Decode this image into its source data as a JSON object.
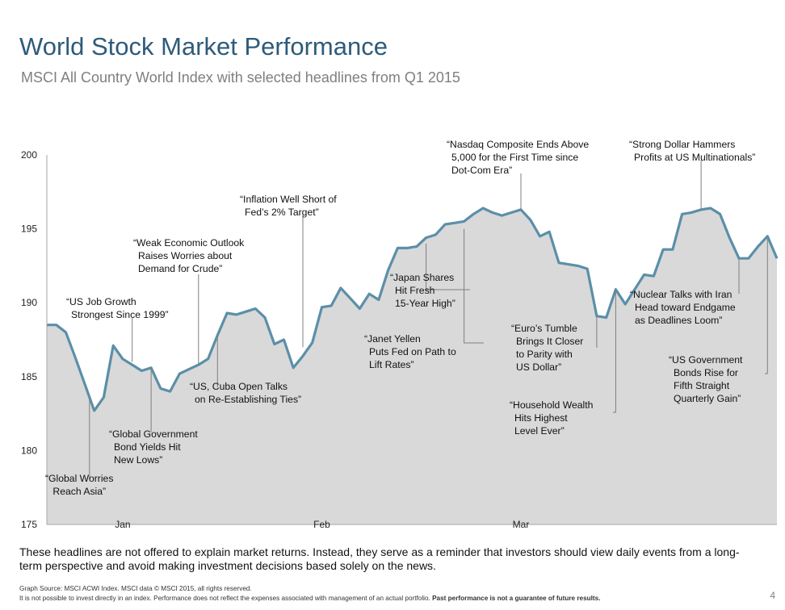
{
  "header": {
    "title": "World Stock Market Performance",
    "subtitle": "MSCI All Country World Index with selected headlines from Q1 2015"
  },
  "chart_data": {
    "type": "area",
    "title": "World Stock Market Performance",
    "subtitle": "MSCI All Country World Index with selected headlines from Q1 2015",
    "ylim": [
      175,
      200
    ],
    "yticks": [
      175,
      180,
      185,
      190,
      195,
      200
    ],
    "xticks": [
      {
        "label": "Jan",
        "x": 8
      },
      {
        "label": "Feb",
        "x": 29
      },
      {
        "label": "Mar",
        "x": 50
      }
    ],
    "grid": false,
    "legend": "none",
    "series": [
      {
        "values": [
          [
            0,
            188.5
          ],
          [
            1,
            188.5
          ],
          [
            2,
            188.0
          ],
          [
            3,
            186.3
          ],
          [
            4,
            184.5
          ],
          [
            5,
            182.7
          ],
          [
            6,
            183.6
          ],
          [
            7,
            187.1
          ],
          [
            8,
            186.2
          ],
          [
            9,
            185.8
          ],
          [
            10,
            185.4
          ],
          [
            11,
            185.6
          ],
          [
            12,
            184.2
          ],
          [
            13,
            184.0
          ],
          [
            14,
            185.2
          ],
          [
            15,
            185.5
          ],
          [
            16,
            185.8
          ],
          [
            17,
            186.2
          ],
          [
            18,
            187.8
          ],
          [
            19,
            189.3
          ],
          [
            20,
            189.2
          ],
          [
            21,
            189.4
          ],
          [
            22,
            189.6
          ],
          [
            23,
            189.0
          ],
          [
            24,
            187.2
          ],
          [
            25,
            187.5
          ],
          [
            26,
            185.6
          ],
          [
            27,
            186.4
          ],
          [
            28,
            187.3
          ],
          [
            29,
            189.7
          ],
          [
            30,
            189.8
          ],
          [
            31,
            191.0
          ],
          [
            32,
            190.3
          ],
          [
            33,
            189.6
          ],
          [
            34,
            190.6
          ],
          [
            35,
            190.2
          ],
          [
            36,
            192.2
          ],
          [
            37,
            193.7
          ],
          [
            38,
            193.7
          ],
          [
            39,
            193.8
          ],
          [
            40,
            194.4
          ],
          [
            41,
            194.6
          ],
          [
            42,
            195.3
          ],
          [
            43,
            195.4
          ],
          [
            44,
            195.5
          ],
          [
            45,
            196.0
          ],
          [
            46,
            196.4
          ],
          [
            47,
            196.1
          ],
          [
            48,
            195.9
          ],
          [
            49,
            196.1
          ],
          [
            50,
            196.3
          ],
          [
            51,
            195.6
          ],
          [
            52,
            194.5
          ],
          [
            53,
            194.8
          ],
          [
            54,
            192.7
          ],
          [
            55,
            192.6
          ],
          [
            56,
            192.5
          ],
          [
            57,
            192.3
          ],
          [
            58,
            189.1
          ],
          [
            59,
            189.0
          ],
          [
            60,
            190.9
          ],
          [
            61,
            189.9
          ],
          [
            62,
            190.9
          ],
          [
            63,
            191.9
          ],
          [
            64,
            191.8
          ],
          [
            65,
            193.6
          ],
          [
            66,
            193.6
          ],
          [
            67,
            196.0
          ],
          [
            68,
            196.1
          ],
          [
            69,
            196.3
          ],
          [
            70,
            196.4
          ],
          [
            71,
            196.0
          ],
          [
            72,
            194.4
          ],
          [
            73,
            193.0
          ],
          [
            74,
            193.0
          ],
          [
            75,
            193.8
          ],
          [
            76,
            194.5
          ],
          [
            77,
            193.0
          ]
        ],
        "color": "#5b8fa8",
        "fill": "#d9d9d9"
      }
    ],
    "annotations": [
      {
        "lines": [
          "“Global Worries",
          " Reach Asia”"
        ],
        "point": [
          4.5,
          183.5
        ]
      },
      {
        "lines": [
          "“US Job Growth",
          "Strongest Since 1999”"
        ],
        "point": [
          9,
          186.0
        ]
      },
      {
        "lines": [
          "“Global Government",
          "Bond Yields Hit",
          "New Lows”"
        ],
        "point": [
          11,
          185.6
        ]
      },
      {
        "lines": [
          "“Weak Economic Outlook",
          "Raises Worries about",
          "Demand for Crude”"
        ],
        "point": [
          16,
          185.8
        ]
      },
      {
        "lines": [
          "“US, Cuba Open Talks",
          "on Re-Establishing Ties”"
        ],
        "point": [
          18,
          187.8
        ]
      },
      {
        "lines": [
          "“Inflation Well Short of",
          "Fed’s 2% Target”"
        ],
        "point": [
          27,
          187.0
        ]
      },
      {
        "lines": [
          "“Japan Shares",
          "Hit Fresh",
          "15-Year High”"
        ],
        "point": [
          40,
          194.0
        ]
      },
      {
        "lines": [
          "“Janet Yellen",
          "Puts Fed on Path to",
          "Lift Rates”"
        ],
        "point": [
          44,
          195.0
        ]
      },
      {
        "lines": [
          "“Nasdaq Composite Ends Above",
          "5,000 for the First Time since",
          "Dot-Com Era”"
        ],
        "point": [
          50,
          196.2
        ]
      },
      {
        "lines": [
          "“Euro’s Tumble",
          "Brings It Closer",
          "to Parity with",
          "US Dollar”"
        ],
        "point": [
          58,
          189.1
        ]
      },
      {
        "lines": [
          "“Household Wealth",
          "Hits Highest",
          "Level Ever”"
        ],
        "point": [
          60,
          190.9
        ]
      },
      {
        "lines": [
          "“Strong Dollar Hammers",
          "Profits at US Multinationals”"
        ],
        "point": [
          69,
          196.3
        ]
      },
      {
        "lines": [
          "“Nuclear Talks with Iran",
          "Head toward Endgame",
          "as Deadlines Loom”"
        ],
        "point": [
          73,
          193.0
        ]
      },
      {
        "lines": [
          "“US Government",
          "Bonds Rise for",
          "Fifth Straight",
          "Quarterly Gain”"
        ],
        "point": [
          76,
          194.5
        ]
      }
    ]
  },
  "footer": {
    "note": "These headlines are not offered to explain market returns. Instead, they serve as a reminder that investors should view daily events from a long-term perspective and avoid making investment decisions based solely on the news.",
    "source_line1": "Graph Source: MSCI ACWI Index. MSCI data © MSCI 2015, all rights reserved.",
    "source_line2a": "It is not possible to invest directly in an index. Performance does not reflect the expenses associated with management of an actual portfolio. ",
    "source_line2b": "Past performance is not a guarantee of future results.",
    "page_number": "4"
  }
}
